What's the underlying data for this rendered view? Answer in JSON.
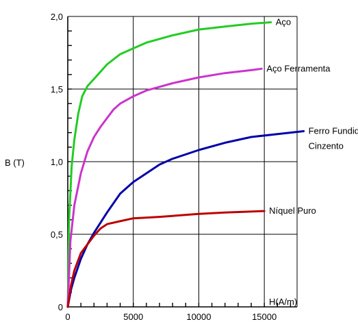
{
  "chart_data": {
    "type": "line",
    "xlabel": "H(A/m)",
    "ylabel": "B (T)",
    "xlim": [
      0,
      17500
    ],
    "ylim": [
      0,
      2.0
    ],
    "x_ticks": [
      0,
      5000,
      10000,
      15000
    ],
    "x_tick_labels": [
      "0",
      "5000",
      "10000",
      "15000"
    ],
    "y_ticks": [
      0,
      0.5,
      1.0,
      1.5,
      2.0
    ],
    "y_tick_labels": [
      "0",
      "0,5",
      "1,0",
      "1,5",
      "2,0"
    ],
    "grid": true,
    "series": [
      {
        "name": "Aço",
        "color": "#22cc22",
        "label_lines": [
          "Aço"
        ],
        "points": [
          [
            0,
            0.0
          ],
          [
            100,
            0.6
          ],
          [
            300,
            0.97
          ],
          [
            500,
            1.15
          ],
          [
            800,
            1.33
          ],
          [
            1100,
            1.45
          ],
          [
            1500,
            1.52
          ],
          [
            2000,
            1.57
          ],
          [
            3000,
            1.67
          ],
          [
            4000,
            1.74
          ],
          [
            5000,
            1.78
          ],
          [
            6000,
            1.82
          ],
          [
            8000,
            1.87
          ],
          [
            10000,
            1.91
          ],
          [
            12000,
            1.93
          ],
          [
            14000,
            1.95
          ],
          [
            15500,
            1.96
          ]
        ]
      },
      {
        "name": "Aço Ferramenta",
        "color": "#cc33cc",
        "label_lines": [
          "Aço Ferramenta"
        ],
        "points": [
          [
            0,
            0.0
          ],
          [
            200,
            0.45
          ],
          [
            500,
            0.7
          ],
          [
            1000,
            0.92
          ],
          [
            1500,
            1.07
          ],
          [
            2000,
            1.17
          ],
          [
            2500,
            1.24
          ],
          [
            3000,
            1.3
          ],
          [
            3500,
            1.36
          ],
          [
            4000,
            1.4
          ],
          [
            5000,
            1.45
          ],
          [
            6000,
            1.49
          ],
          [
            8000,
            1.54
          ],
          [
            10000,
            1.58
          ],
          [
            12000,
            1.61
          ],
          [
            14000,
            1.63
          ],
          [
            14800,
            1.64
          ]
        ]
      },
      {
        "name": "Ferro Fundido Cinzento",
        "color": "#0000aa",
        "label_lines": [
          "Ferro Fundido",
          "Cinzento"
        ],
        "points": [
          [
            0,
            0.0
          ],
          [
            250,
            0.12
          ],
          [
            500,
            0.2
          ],
          [
            1000,
            0.33
          ],
          [
            1500,
            0.43
          ],
          [
            2000,
            0.51
          ],
          [
            3000,
            0.65
          ],
          [
            4000,
            0.78
          ],
          [
            5000,
            0.86
          ],
          [
            6000,
            0.92
          ],
          [
            7000,
            0.98
          ],
          [
            8000,
            1.02
          ],
          [
            10000,
            1.08
          ],
          [
            12000,
            1.13
          ],
          [
            14000,
            1.17
          ],
          [
            16000,
            1.19
          ],
          [
            18000,
            1.21
          ]
        ]
      },
      {
        "name": "Níquel Puro",
        "color": "#bb0000",
        "label_lines": [
          "Níquel Puro"
        ],
        "points": [
          [
            0,
            0.0
          ],
          [
            250,
            0.15
          ],
          [
            500,
            0.25
          ],
          [
            1000,
            0.37
          ],
          [
            1500,
            0.43
          ],
          [
            2000,
            0.49
          ],
          [
            2500,
            0.54
          ],
          [
            3000,
            0.57
          ],
          [
            4000,
            0.59
          ],
          [
            5000,
            0.61
          ],
          [
            7000,
            0.62
          ],
          [
            10000,
            0.64
          ],
          [
            12000,
            0.65
          ],
          [
            15000,
            0.66
          ]
        ]
      }
    ]
  }
}
